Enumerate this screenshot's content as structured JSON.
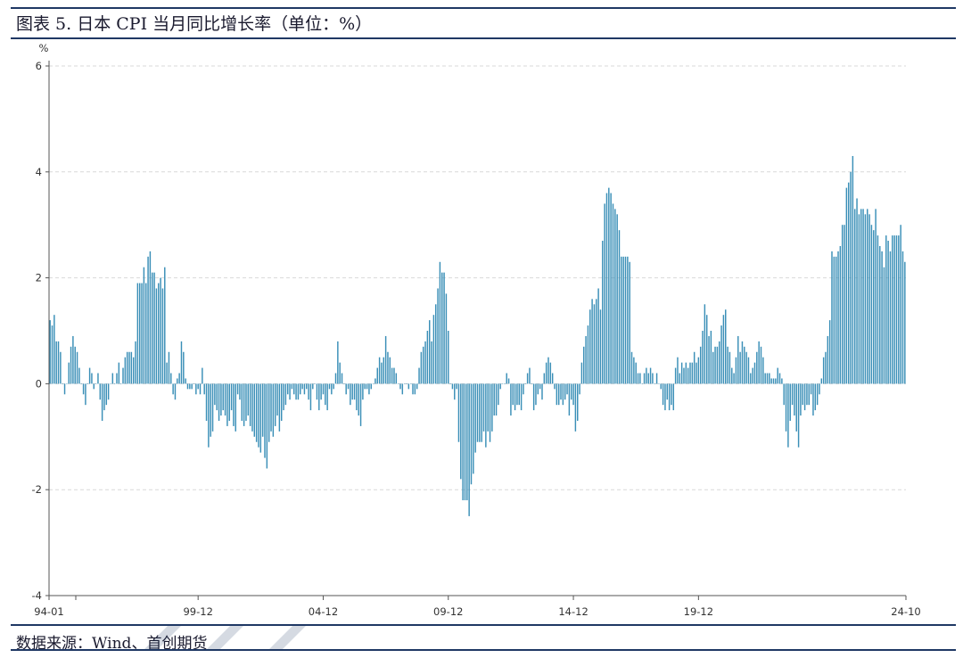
{
  "title": "图表 5. 日本 CPI 当月同比增长率（单位：%）",
  "source": "数据来源：Wind、首创期货",
  "chart_data": {
    "type": "bar",
    "title": "图表 5. 日本 CPI 当月同比增长率（单位：%）",
    "ylabel": "%",
    "ylim": [
      -4,
      6
    ],
    "yticks": [
      -4,
      -2,
      0,
      2,
      4,
      6
    ],
    "grid": true,
    "legend": "none",
    "bar_color": "#3a8fb7",
    "start_month": "94-01",
    "end_month": "24-10",
    "x_tick_labels": [
      "94-01",
      "99-12",
      "04-12",
      "09-12",
      "14-12",
      "19-12",
      "24-10"
    ],
    "values": [
      1.2,
      1.1,
      1.3,
      0.8,
      0.8,
      0.6,
      0.0,
      -0.2,
      0.0,
      0.4,
      0.7,
      0.9,
      0.7,
      0.6,
      0.3,
      0.0,
      -0.2,
      -0.4,
      0.0,
      0.3,
      0.2,
      -0.1,
      0.0,
      0.2,
      -0.3,
      -0.7,
      -0.5,
      -0.4,
      -0.3,
      0.0,
      0.2,
      0.0,
      0.2,
      0.4,
      0.0,
      0.3,
      0.5,
      0.6,
      0.6,
      0.6,
      0.5,
      0.8,
      1.9,
      1.9,
      1.9,
      2.2,
      1.9,
      2.4,
      2.5,
      2.1,
      2.1,
      1.8,
      1.9,
      2.0,
      1.8,
      2.2,
      0.4,
      0.6,
      0.2,
      -0.2,
      -0.3,
      0.1,
      0.2,
      0.8,
      0.6,
      0.1,
      -0.1,
      -0.1,
      -0.1,
      0.0,
      -0.2,
      -0.1,
      -0.2,
      0.3,
      -0.2,
      -0.7,
      -1.2,
      -1.0,
      -0.9,
      -0.4,
      -0.5,
      -0.7,
      -0.6,
      -0.5,
      -0.6,
      -0.8,
      -0.7,
      -0.5,
      -0.8,
      -0.9,
      -0.2,
      -0.3,
      -0.7,
      -0.8,
      -0.7,
      -0.6,
      -0.8,
      -0.9,
      -1.0,
      -1.1,
      -1.2,
      -1.3,
      -1.0,
      -1.4,
      -1.6,
      -1.1,
      -0.9,
      -1.0,
      -0.8,
      -0.6,
      -0.9,
      -0.7,
      -0.5,
      -0.4,
      -0.2,
      -0.3,
      -0.1,
      -0.2,
      -0.3,
      -0.3,
      -0.2,
      -0.1,
      -0.2,
      -0.1,
      -0.3,
      -0.5,
      -0.1,
      0.0,
      -0.3,
      -0.5,
      -0.3,
      -0.2,
      -0.4,
      -0.5,
      -0.1,
      -0.2,
      -0.1,
      0.2,
      0.8,
      0.4,
      0.2,
      0.0,
      -0.2,
      -0.1,
      -0.4,
      -0.3,
      -0.3,
      -0.5,
      -0.6,
      -0.8,
      -0.3,
      -0.1,
      -0.1,
      -0.2,
      -0.1,
      0.0,
      0.1,
      0.3,
      0.5,
      0.4,
      0.5,
      0.9,
      0.6,
      0.5,
      0.3,
      0.3,
      0.2,
      0.0,
      -0.1,
      -0.2,
      0.0,
      0.0,
      -0.1,
      0.0,
      -0.2,
      -0.2,
      -0.1,
      0.3,
      0.6,
      0.7,
      0.8,
      1.0,
      1.2,
      0.8,
      1.3,
      1.5,
      1.8,
      2.3,
      2.1,
      2.1,
      1.7,
      1.0,
      0.0,
      -0.1,
      -0.3,
      -0.1,
      -1.1,
      -1.8,
      -2.2,
      -2.2,
      -2.2,
      -2.5,
      -1.9,
      -1.7,
      -1.3,
      -1.1,
      -1.1,
      -1.1,
      -0.9,
      -1.2,
      -0.9,
      -1.1,
      -0.9,
      -0.6,
      -0.6,
      -0.4,
      -0.1,
      0.0,
      0.0,
      0.2,
      0.1,
      -0.6,
      -0.4,
      -0.5,
      -0.4,
      -0.4,
      -0.5,
      -0.2,
      0.0,
      0.2,
      0.3,
      0.0,
      -0.5,
      -0.4,
      -0.2,
      -0.1,
      -0.3,
      0.2,
      0.4,
      0.5,
      0.4,
      0.2,
      -0.1,
      -0.4,
      -0.4,
      -0.3,
      -0.4,
      -0.3,
      -0.2,
      -0.6,
      -0.3,
      -0.4,
      -0.9,
      -0.7,
      -0.2,
      0.4,
      0.7,
      0.9,
      1.1,
      1.4,
      1.6,
      1.5,
      1.6,
      1.8,
      1.4,
      2.7,
      3.4,
      3.6,
      3.7,
      3.6,
      3.4,
      3.3,
      3.2,
      2.9,
      2.4,
      2.4,
      2.4,
      2.4,
      2.3,
      0.6,
      0.5,
      0.4,
      0.2,
      0.2,
      0.0,
      0.2,
      0.3,
      0.2,
      0.3,
      0.2,
      0.0,
      0.2,
      0.0,
      -0.1,
      -0.4,
      -0.5,
      -0.3,
      -0.5,
      -0.4,
      -0.5,
      0.3,
      0.5,
      0.2,
      0.4,
      0.3,
      0.4,
      0.3,
      0.4,
      0.4,
      0.6,
      0.4,
      0.5,
      0.7,
      1.0,
      1.5,
      1.3,
      0.9,
      1.0,
      0.6,
      0.7,
      0.7,
      0.8,
      1.1,
      1.3,
      1.4,
      0.7,
      0.6,
      0.3,
      0.2,
      0.5,
      0.9,
      0.6,
      0.8,
      0.7,
      0.6,
      0.5,
      0.2,
      0.3,
      0.4,
      0.6,
      0.8,
      0.7,
      0.5,
      0.2,
      0.2,
      0.2,
      0.1,
      0.1,
      0.1,
      0.3,
      0.2,
      0.1,
      -0.4,
      -0.9,
      -1.2,
      -0.7,
      -0.4,
      -0.6,
      -0.9,
      -1.2,
      -0.6,
      -0.4,
      -0.5,
      -0.4,
      -0.4,
      -0.2,
      -0.6,
      -0.5,
      -0.4,
      -0.2,
      0.1,
      0.5,
      0.6,
      0.9,
      1.2,
      2.5,
      2.4,
      2.4,
      2.5,
      2.6,
      3.0,
      3.0,
      3.7,
      3.8,
      4.0,
      4.3,
      3.3,
      3.5,
      3.2,
      3.3,
      3.3,
      3.2,
      3.3,
      3.2,
      3.0,
      2.9,
      3.3,
      2.8,
      2.6,
      2.5,
      2.2,
      2.8,
      2.7,
      2.5,
      2.8,
      2.8,
      2.8,
      2.8,
      3.0,
      2.5,
      2.3
    ]
  }
}
